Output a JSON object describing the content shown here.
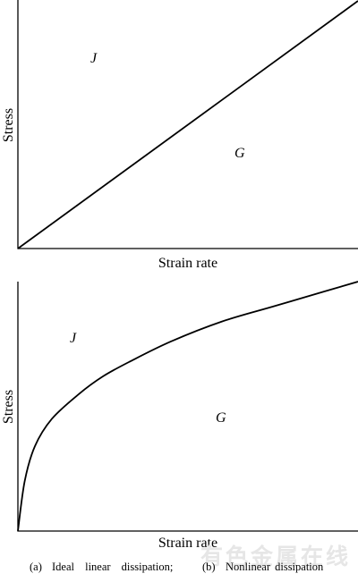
{
  "chart_data": [
    {
      "type": "line",
      "xlabel": "Strain rate",
      "ylabel": "Stress",
      "regions": [
        "J",
        "G"
      ],
      "series": [
        {
          "x": [
            0,
            1
          ],
          "y": [
            0,
            1
          ]
        }
      ]
    },
    {
      "type": "line",
      "xlabel": "Strain rate",
      "ylabel": "Stress",
      "regions": [
        "J",
        "G"
      ],
      "series": [
        {
          "x": [
            0,
            0.02,
            0.05,
            0.1,
            0.18,
            0.25,
            0.33,
            0.45,
            0.6,
            0.75,
            0.9,
            1
          ],
          "y": [
            0,
            0.2,
            0.34,
            0.45,
            0.55,
            0.62,
            0.68,
            0.76,
            0.84,
            0.9,
            0.96,
            1
          ]
        }
      ]
    }
  ],
  "caption": {
    "part_a": "(a)",
    "text_a": "Ideal linear dissipation;",
    "part_b": "(b)",
    "text_b": "Nonlinear dissipation"
  },
  "watermark": "有色金属在线"
}
